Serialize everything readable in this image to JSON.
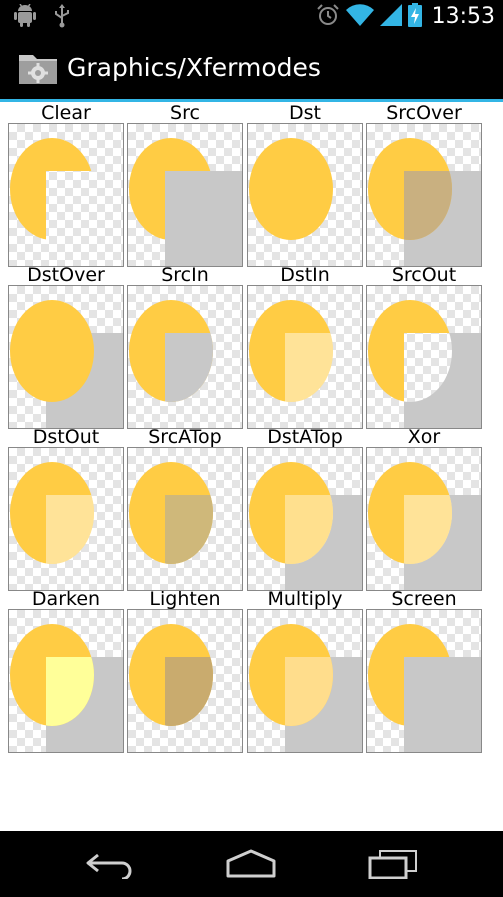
{
  "status_bar": {
    "time": "13:53",
    "icons_left": [
      "android-debug-icon",
      "usb-icon"
    ],
    "icons_right": [
      "alarm-icon",
      "wifi-icon",
      "signal-icon",
      "battery-charging-icon"
    ]
  },
  "action_bar": {
    "title": "Graphics/Xfermodes",
    "icon": "folder-gear-icon"
  },
  "modes": [
    {
      "label": "Clear",
      "mode": "clear"
    },
    {
      "label": "Src",
      "mode": "src"
    },
    {
      "label": "Dst",
      "mode": "dst"
    },
    {
      "label": "SrcOver",
      "mode": "srcover"
    },
    {
      "label": "DstOver",
      "mode": "dstover"
    },
    {
      "label": "SrcIn",
      "mode": "srcin"
    },
    {
      "label": "DstIn",
      "mode": "dstin"
    },
    {
      "label": "SrcOut",
      "mode": "srcout"
    },
    {
      "label": "DstOut",
      "mode": "dstout"
    },
    {
      "label": "SrcATop",
      "mode": "srcatop"
    },
    {
      "label": "DstATop",
      "mode": "dstatop"
    },
    {
      "label": "Xor",
      "mode": "xor"
    },
    {
      "label": "Darken",
      "mode": "darken"
    },
    {
      "label": "Lighten",
      "mode": "lighten"
    },
    {
      "label": "Multiply",
      "mode": "multiply"
    },
    {
      "label": "Screen",
      "mode": "screen"
    }
  ],
  "colors": {
    "circle": "#FFCC44",
    "square": "#C8C8C8",
    "accent": "#33B5E5",
    "darken_overlap": "#FFFF99",
    "multiply_overlap": "#FFDD8C"
  },
  "nav_bar": {
    "buttons": [
      "back-icon",
      "home-icon",
      "recents-icon"
    ]
  }
}
